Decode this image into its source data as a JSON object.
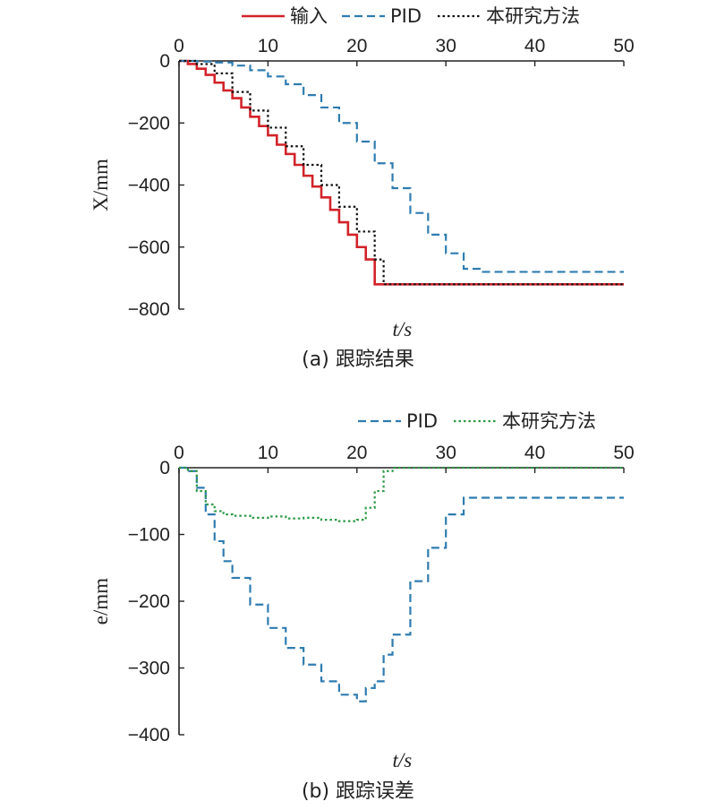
{
  "colors": {
    "input": "#d2232a",
    "pid": "#2f7cb0",
    "method_a": "#111111",
    "method_b": "#2e9a46",
    "axis": "#222222"
  },
  "chart_data": [
    {
      "type": "line",
      "caption": "(a) 跟踪结果",
      "xlabel": "t/s",
      "ylabel": "X/mm",
      "xlim": [
        0,
        50
      ],
      "ylim": [
        -800,
        0
      ],
      "xticks": [
        0,
        10,
        20,
        30,
        40,
        50
      ],
      "yticks": [
        0,
        -200,
        -400,
        -600,
        -800
      ],
      "x_axis_position": "top",
      "legend_position": "top",
      "series": [
        {
          "name": "输入",
          "style": "solid",
          "color": "#d2232a",
          "x": [
            0,
            1,
            2,
            3,
            4,
            5,
            6,
            7,
            8,
            9,
            10,
            11,
            12,
            13,
            14,
            15,
            16,
            17,
            18,
            19,
            20,
            21,
            22,
            50
          ],
          "y": [
            0,
            -10,
            -25,
            -45,
            -70,
            -95,
            -120,
            -150,
            -180,
            -210,
            -240,
            -270,
            -300,
            -335,
            -370,
            -405,
            -440,
            -480,
            -520,
            -560,
            -600,
            -640,
            -720,
            -720
          ]
        },
        {
          "name": "PID",
          "style": "dashed",
          "color": "#2f7cb0",
          "x": [
            0,
            2,
            4,
            6,
            8,
            10,
            12,
            14,
            16,
            18,
            20,
            22,
            24,
            26,
            28,
            30,
            32,
            34,
            50
          ],
          "y": [
            0,
            -2,
            -5,
            -15,
            -30,
            -50,
            -75,
            -110,
            -150,
            -200,
            -260,
            -330,
            -410,
            -490,
            -560,
            -620,
            -670,
            -680,
            -680
          ]
        },
        {
          "name": "本研究方法",
          "style": "dotted",
          "color": "#111111",
          "x": [
            0,
            2,
            4,
            6,
            8,
            10,
            12,
            14,
            16,
            18,
            20,
            22,
            23,
            50
          ],
          "y": [
            0,
            -10,
            -40,
            -100,
            -160,
            -215,
            -275,
            -335,
            -400,
            -470,
            -550,
            -640,
            -720,
            -720
          ]
        }
      ]
    },
    {
      "type": "line",
      "caption": "(b) 跟踪误差",
      "xlabel": "t/s",
      "ylabel": "e/mm",
      "xlim": [
        0,
        50
      ],
      "ylim": [
        -400,
        0
      ],
      "xticks": [
        0,
        10,
        20,
        30,
        40,
        50
      ],
      "yticks": [
        0,
        -100,
        -200,
        -300,
        -400
      ],
      "x_axis_position": "top",
      "legend_position": "top-right",
      "series": [
        {
          "name": "PID",
          "style": "dashed",
          "color": "#2f7cb0",
          "x": [
            0,
            1,
            2,
            3,
            4,
            5,
            6,
            8,
            10,
            12,
            14,
            16,
            18,
            20,
            21,
            22,
            23,
            24,
            26,
            28,
            30,
            32,
            33,
            50
          ],
          "y": [
            0,
            -5,
            -30,
            -70,
            -110,
            -140,
            -165,
            -205,
            -240,
            -270,
            -295,
            -320,
            -340,
            -350,
            -330,
            -320,
            -280,
            -250,
            -170,
            -120,
            -70,
            -45,
            -45,
            -45
          ]
        },
        {
          "name": "本研究方法",
          "style": "dotted",
          "color": "#2e9a46",
          "x": [
            0,
            1,
            2,
            3,
            4,
            5,
            6,
            8,
            10,
            12,
            14,
            16,
            18,
            20,
            21,
            22,
            23,
            24,
            50
          ],
          "y": [
            0,
            -5,
            -35,
            -55,
            -65,
            -70,
            -72,
            -75,
            -73,
            -76,
            -75,
            -78,
            -80,
            -78,
            -60,
            -35,
            -5,
            0,
            0
          ]
        }
      ]
    }
  ]
}
